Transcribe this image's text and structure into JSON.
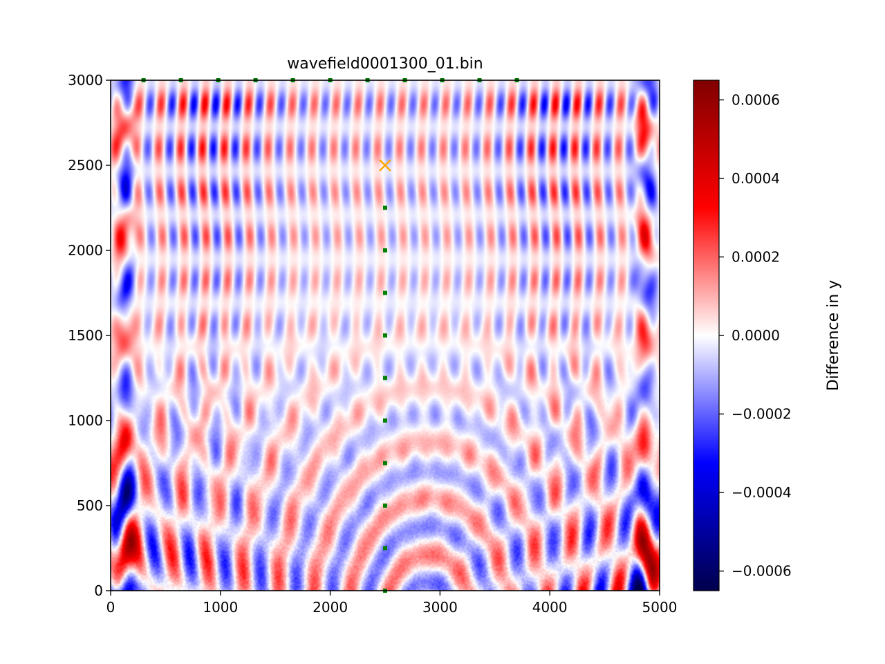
{
  "chart_data": {
    "type": "heatmap",
    "title": "wavefield0001300_01.bin",
    "xlabel": "",
    "ylabel": "",
    "xlim": [
      0,
      5000
    ],
    "ylim": [
      0,
      3000
    ],
    "x_ticks": [
      "0",
      "1000",
      "2000",
      "3000",
      "4000",
      "5000"
    ],
    "y_ticks": [
      "0",
      "500",
      "1000",
      "1500",
      "2000",
      "2500",
      "3000"
    ],
    "grid": false,
    "colormap": "seismic",
    "colorbar": {
      "label": "Difference in y",
      "range": [
        -0.00065,
        0.00065
      ],
      "ticks": [
        "−0.0006",
        "−0.0004",
        "−0.0002",
        "0.0000",
        "0.0002",
        "0.0004",
        "0.0006"
      ],
      "tick_values": [
        -0.0006,
        -0.0004,
        -0.0002,
        0.0,
        0.0002,
        0.0004,
        0.0006
      ],
      "colors": [
        "#00004c",
        "#0000ff",
        "#ffffff",
        "#ff0000",
        "#800000"
      ]
    },
    "source": {
      "x": 2500,
      "y": 2500,
      "marker": "x",
      "color": "#ffa500"
    },
    "receivers_vertical": {
      "x": 2500,
      "y": [
        0,
        250,
        500,
        750,
        1000,
        1250,
        1500,
        1750,
        2000,
        2250
      ],
      "color": "#008000"
    },
    "receivers_surface": {
      "x": [
        300,
        640,
        980,
        1320,
        1660,
        2000,
        2340,
        2680,
        3020,
        3360,
        3700
      ],
      "y": 3000,
      "color": "#008000"
    }
  }
}
